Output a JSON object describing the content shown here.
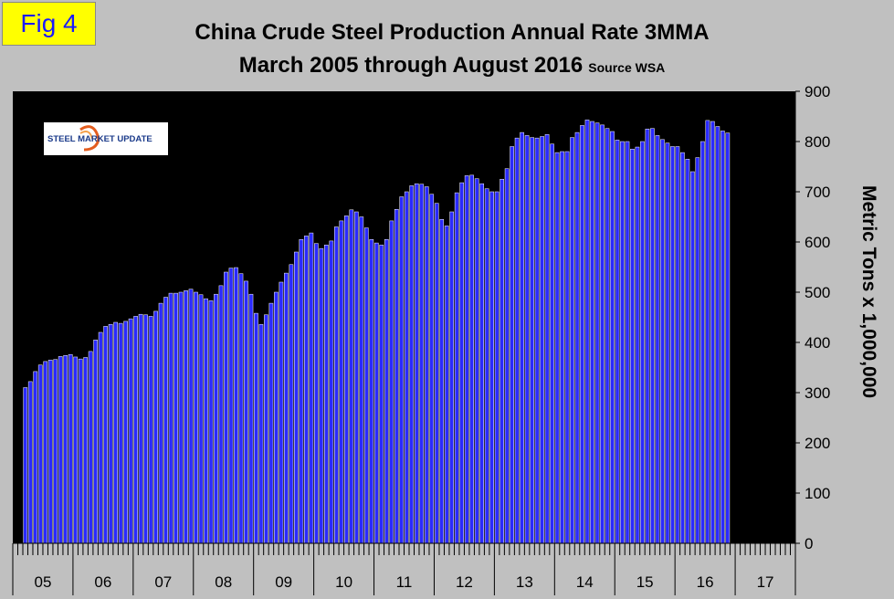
{
  "figure": {
    "label": "Fig 4"
  },
  "title_line1": "China Crude Steel Production Annual Rate 3MMA",
  "title_line2": "March 2005 through August 2016",
  "source": "Source WSA",
  "logo": {
    "text": "STEEL MARKET UPDATE"
  },
  "colors": {
    "background": "#c0c0c0",
    "plot_bg": "#000000",
    "bar": "#2a2aff",
    "bar_edge": "#ffffff"
  },
  "chart_data": {
    "type": "bar",
    "title": "China Crude Steel Production Annual Rate 3MMA",
    "subtitle": "March 2005 through August 2016",
    "xlabel": "",
    "ylabel": "Metric Tons x 1,000,000",
    "ylim": [
      0,
      900
    ],
    "yticks": [
      0,
      100,
      200,
      300,
      400,
      500,
      600,
      700,
      800,
      900
    ],
    "year_labels": [
      "05",
      "06",
      "07",
      "08",
      "09",
      "10",
      "11",
      "12",
      "13",
      "14",
      "15",
      "16",
      "17"
    ],
    "start": "2005-03",
    "series": [
      {
        "name": "3MMA",
        "values": [
          310,
          322,
          342,
          355,
          362,
          365,
          366,
          372,
          374,
          376,
          371,
          367,
          370,
          382,
          405,
          420,
          432,
          436,
          440,
          438,
          442,
          447,
          452,
          456,
          455,
          452,
          462,
          478,
          490,
          498,
          498,
          500,
          503,
          506,
          500,
          495,
          487,
          483,
          496,
          513,
          540,
          548,
          549,
          537,
          522,
          496,
          458,
          436,
          455,
          478,
          500,
          520,
          538,
          555,
          580,
          605,
          612,
          618,
          597,
          587,
          594,
          602,
          630,
          642,
          652,
          664,
          660,
          650,
          628,
          605,
          598,
          594,
          605,
          642,
          665,
          690,
          700,
          712,
          716,
          715,
          710,
          695,
          677,
          645,
          632,
          660,
          698,
          718,
          732,
          733,
          726,
          716,
          706,
          700,
          700,
          725,
          746,
          790,
          807,
          818,
          812,
          808,
          807,
          810,
          814,
          795,
          778,
          780,
          780,
          808,
          818,
          832,
          843,
          840,
          837,
          833,
          826,
          820,
          803,
          800,
          800,
          785,
          789,
          800,
          825,
          826,
          812,
          804,
          797,
          790,
          790,
          778,
          765,
          740,
          768,
          800,
          842,
          840,
          830,
          821,
          817
        ]
      }
    ]
  }
}
